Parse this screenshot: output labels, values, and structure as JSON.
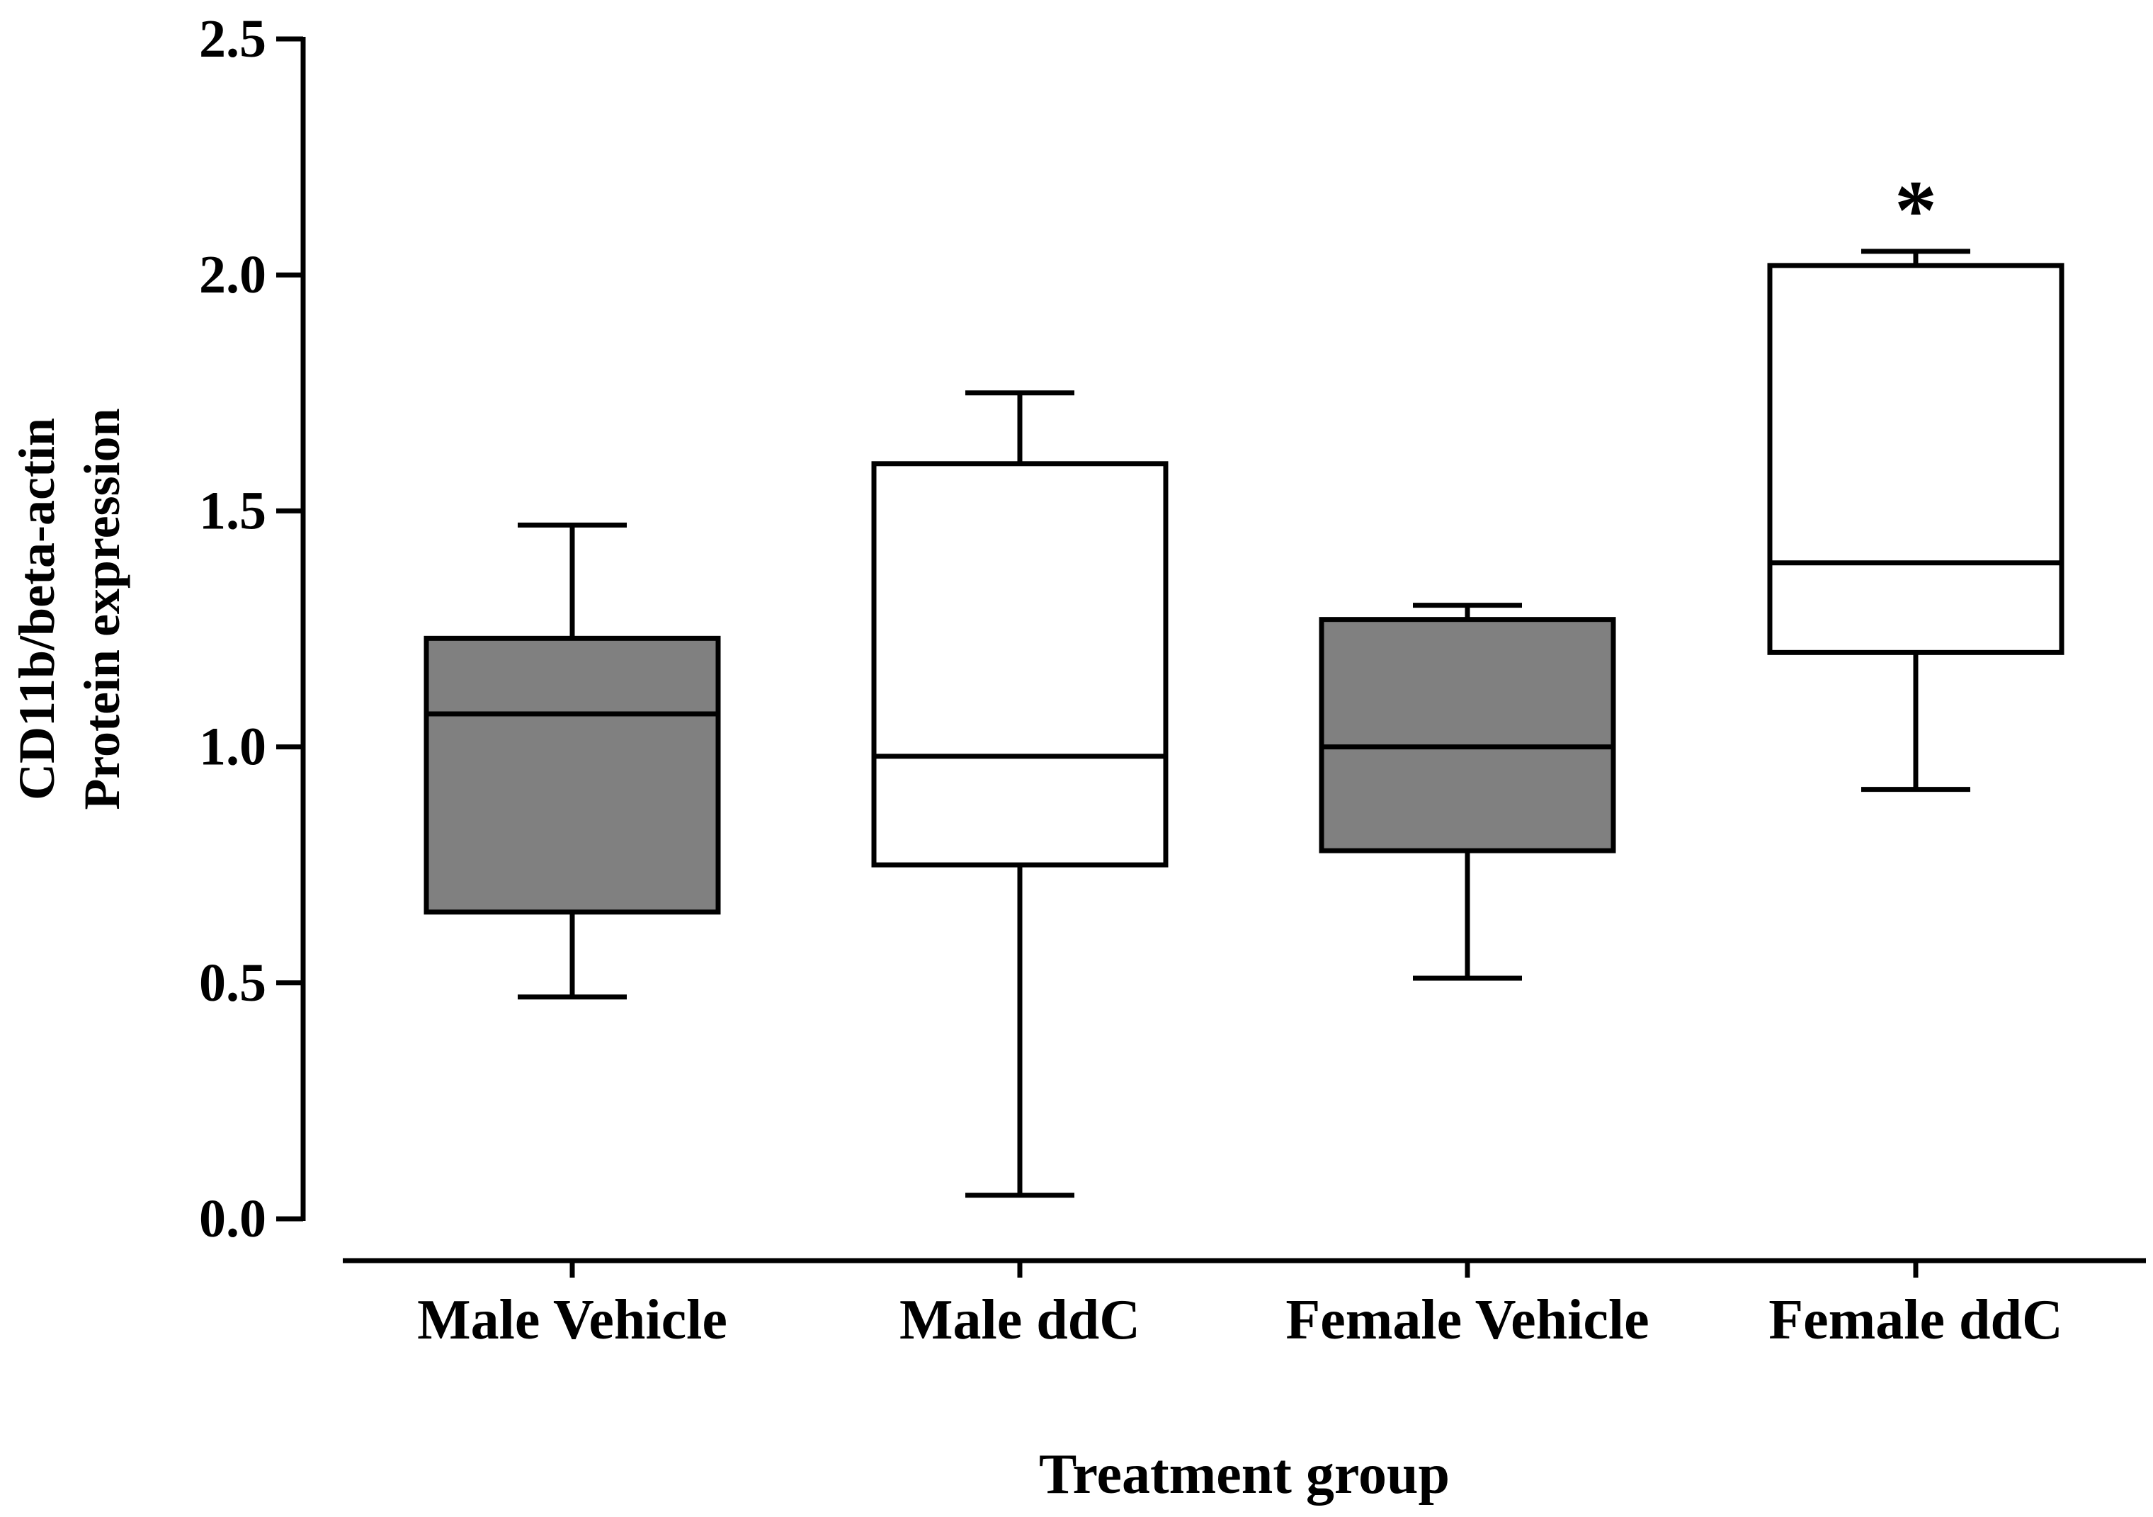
{
  "chart_data": {
    "type": "box",
    "title": "",
    "xlabel": "Treatment group",
    "ylabel_lines": [
      "CD11b/beta-actin",
      "Protein expression"
    ],
    "ylim": [
      0,
      2.5
    ],
    "yticks": [
      "0.0",
      "0.5",
      "1.0",
      "1.5",
      "2.0",
      "2.5"
    ],
    "ytick_values": [
      0,
      0.5,
      1.0,
      1.5,
      2.0,
      2.5
    ],
    "categories": [
      "Male Vehicle",
      "Male ddC",
      "Female Vehicle",
      "Female ddC"
    ],
    "boxes": [
      {
        "category": "Male Vehicle",
        "min": 0.47,
        "q1": 0.65,
        "median": 1.07,
        "q3": 1.23,
        "max": 1.47,
        "fill": "#808080"
      },
      {
        "category": "Male ddC",
        "min": 0.05,
        "q1": 0.75,
        "median": 0.98,
        "q3": 1.6,
        "max": 1.75,
        "fill": "#ffffff"
      },
      {
        "category": "Female Vehicle",
        "min": 0.51,
        "q1": 0.78,
        "median": 1.0,
        "q3": 1.27,
        "max": 1.3,
        "fill": "#808080"
      },
      {
        "category": "Female ddC",
        "min": 0.91,
        "q1": 1.2,
        "median": 1.39,
        "q3": 2.02,
        "max": 2.05,
        "fill": "#ffffff"
      }
    ],
    "annotations": [
      {
        "category": "Female ddC",
        "text": "*"
      }
    ],
    "grid": false,
    "legend": "none"
  }
}
